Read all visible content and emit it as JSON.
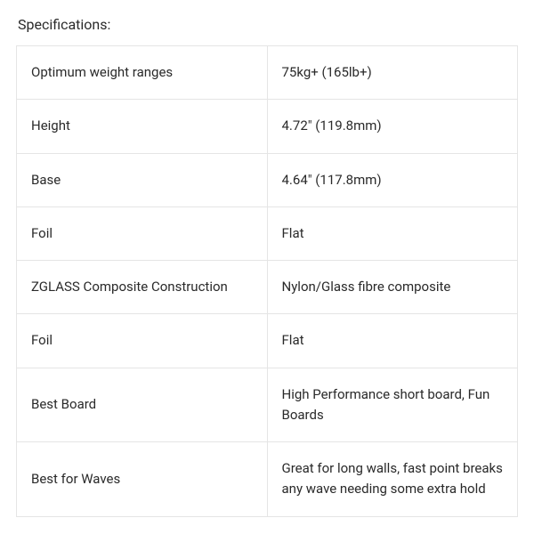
{
  "title": "Specifications:",
  "table": {
    "type": "table",
    "border_color": "#e5e5e5",
    "background_color": "#ffffff",
    "text_color": "#2a2a2a",
    "font_size": 15,
    "cell_padding": "18px 16px",
    "column_count": 2,
    "rows": [
      {
        "label": "Optimum weight ranges",
        "value": "75kg+ (165lb+)"
      },
      {
        "label": "Height",
        "value": "4.72\" (119.8mm)"
      },
      {
        "label": "Base",
        "value": "4.64\" (117.8mm)"
      },
      {
        "label": "Foil",
        "value": "Flat"
      },
      {
        "label": "ZGLASS Composite Construction",
        "value": "Nylon/Glass fibre composite"
      },
      {
        "label": "Foil",
        "value": "Flat"
      },
      {
        "label": "Best Board",
        "value": "High Performance short board, Fun Boards"
      },
      {
        "label": "Best for Waves",
        "value": "Great for long walls, fast point breaks any wave needing some extra hold"
      }
    ]
  }
}
